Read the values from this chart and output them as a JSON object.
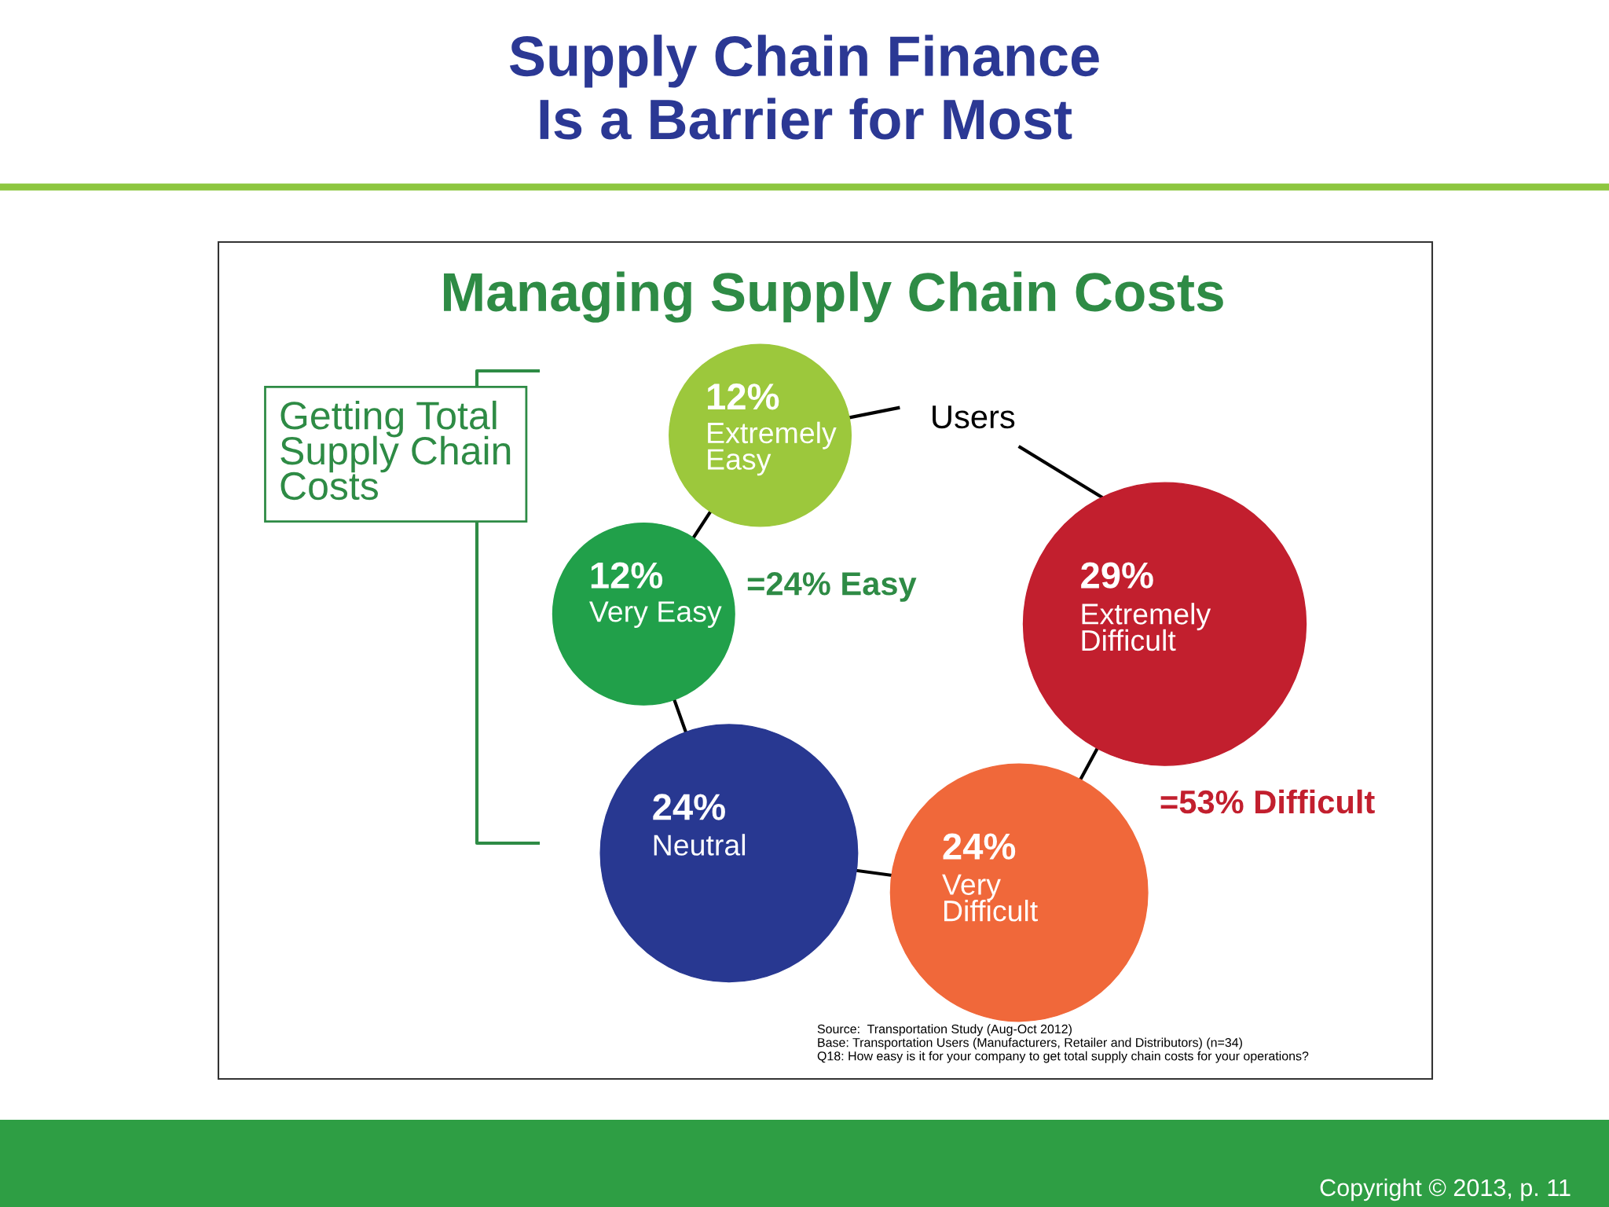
{
  "chart_data": {
    "type": "other",
    "title": "Supply Chain Finance\nIs a Barrier for Most",
    "subtitle": "Managing Supply Chain Costs",
    "categories": [
      "Extremely\nEasy",
      "Very Easy",
      "Neutral",
      "Very\nDifficult",
      "Extremely\nDifficult"
    ],
    "values": [
      12,
      12,
      24,
      24,
      29
    ],
    "value_labels": [
      "12%",
      "12%",
      "24%",
      "24%",
      "29%"
    ],
    "colors": [
      "#9cc83c",
      "#21a04a",
      "#283891",
      "#f0683a",
      "#c21f2e"
    ],
    "data_labels": true,
    "annotations": [
      "Users",
      "=24% Easy",
      "=53% Difficult",
      "Getting Total\nSupply Chain\nCosts",
      "Source:  Transportation Study (Aug-Oct 2012)\nBase: Transportation Users (Manufacturers, Retailer and Distributors) (n=34)\nQ18: How easy is it for your company to get total supply chain costs for your operations?",
      "Copyright © 2013, p. 11"
    ]
  }
}
